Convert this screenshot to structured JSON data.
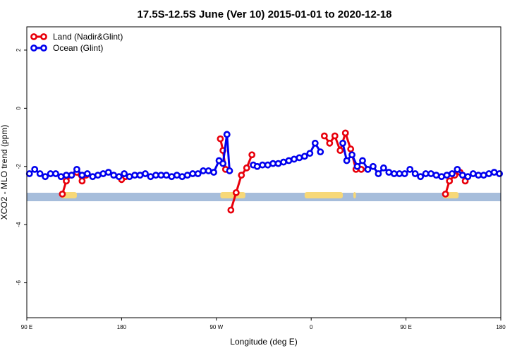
{
  "chart_data": {
    "type": "line",
    "title": "17.5S-12.5S June (Ver 10)   2015-01-01 to 2020-12-18",
    "xlabel": "Longitude (deg E)",
    "ylabel": "XCO2 - MLO trend (ppm)",
    "xlim": [
      90,
      450
    ],
    "ylim": [
      -7.2,
      2.8
    ],
    "x_ticks": [
      {
        "value": 90,
        "label": "90 E"
      },
      {
        "value": 162,
        "label": "180"
      },
      {
        "value": 234,
        "label": "90 W"
      },
      {
        "value": 306,
        "label": "0"
      },
      {
        "value": 378,
        "label": "90 E"
      },
      {
        "value": 450,
        "label": "180"
      }
    ],
    "y_ticks": [
      {
        "value": 2,
        "label": "2"
      },
      {
        "value": 0,
        "label": "0"
      },
      {
        "value": -2,
        "label": "-2"
      },
      {
        "value": -4,
        "label": "-4"
      },
      {
        "value": -6,
        "label": "-6"
      }
    ],
    "legend": {
      "placement": "top-left"
    },
    "land_strip": {
      "y": -3.05,
      "ocean_color": "#a6bddb",
      "land_color": "#f7d878",
      "land_segments": [
        [
          116,
          128
        ],
        [
          237,
          256
        ],
        [
          301,
          330
        ],
        [
          338,
          340
        ],
        [
          406,
          418
        ]
      ]
    },
    "series": [
      {
        "name": "Land (Nadir&Glint)",
        "color": "#e8000b",
        "segments": [
          {
            "x": [
              117,
              120,
              124,
              128,
              132,
              135
            ],
            "y": [
              -2.95,
              -2.5,
              -2.3,
              -2.2,
              -2.5,
              -2.3
            ]
          },
          {
            "x": [
              162,
              165
            ],
            "y": [
              -2.45,
              -2.35
            ]
          },
          {
            "x": [
              237,
              239,
              241
            ],
            "y": [
              -1.05,
              -1.45,
              -2.1
            ]
          },
          {
            "x": [
              245,
              249,
              253,
              257,
              261
            ],
            "y": [
              -3.5,
              -2.9,
              -2.3,
              -2.05,
              -1.6
            ]
          },
          {
            "x": [
              316,
              320,
              324,
              328,
              332,
              336,
              340,
              344
            ],
            "y": [
              -0.95,
              -1.2,
              -0.95,
              -1.45,
              -0.85,
              -1.4,
              -2.1,
              -2.1
            ]
          },
          {
            "x": [
              408,
              411,
              415,
              419,
              423
            ],
            "y": [
              -2.95,
              -2.5,
              -2.3,
              -2.2,
              -2.5
            ]
          }
        ]
      },
      {
        "name": "Ocean (Glint)",
        "color": "#0000ee",
        "segments": [
          {
            "x": [
              92,
              96,
              100,
              104,
              108,
              112,
              116,
              120,
              124,
              128,
              132,
              136,
              140,
              144,
              148,
              152,
              156,
              160,
              164,
              168,
              172,
              176,
              180,
              184,
              188,
              192,
              196,
              200,
              204,
              208,
              212,
              216,
              220,
              224,
              228,
              232,
              236,
              239,
              242
            ],
            "y": [
              -2.25,
              -2.1,
              -2.25,
              -2.35,
              -2.25,
              -2.25,
              -2.35,
              -2.3,
              -2.3,
              -2.1,
              -2.3,
              -2.25,
              -2.35,
              -2.3,
              -2.25,
              -2.2,
              -2.3,
              -2.35,
              -2.25,
              -2.35,
              -2.3,
              -2.3,
              -2.25,
              -2.35,
              -2.3,
              -2.3,
              -2.3,
              -2.35,
              -2.3,
              -2.35,
              -2.3,
              -2.25,
              -2.25,
              -2.15,
              -2.15,
              -2.2,
              -1.8,
              -1.9,
              -0.9
            ]
          },
          {
            "x": [
              242,
              244
            ],
            "y": [
              -0.9,
              -2.15
            ]
          },
          {
            "x": [
              262,
              265,
              269,
              273,
              277,
              281,
              285,
              289,
              293,
              297,
              301,
              305,
              309,
              313
            ],
            "y": [
              -1.95,
              -2.0,
              -1.95,
              -1.95,
              -1.9,
              -1.9,
              -1.85,
              -1.8,
              -1.75,
              -1.7,
              -1.65,
              -1.55,
              -1.2,
              -1.5
            ]
          },
          {
            "x": [
              330,
              333,
              337,
              341,
              345,
              349,
              353,
              357,
              361,
              365,
              369,
              373,
              377,
              381,
              385,
              389,
              393,
              397,
              401,
              405,
              409,
              413,
              417,
              421,
              425,
              429,
              433,
              437,
              441,
              445,
              449
            ],
            "y": [
              -1.2,
              -1.8,
              -1.6,
              -2.0,
              -1.8,
              -2.1,
              -2.0,
              -2.25,
              -2.05,
              -2.2,
              -2.25,
              -2.25,
              -2.25,
              -2.1,
              -2.25,
              -2.35,
              -2.25,
              -2.25,
              -2.3,
              -2.35,
              -2.3,
              -2.25,
              -2.1,
              -2.3,
              -2.35,
              -2.25,
              -2.3,
              -2.3,
              -2.25,
              -2.2,
              -2.25
            ]
          }
        ]
      }
    ]
  }
}
